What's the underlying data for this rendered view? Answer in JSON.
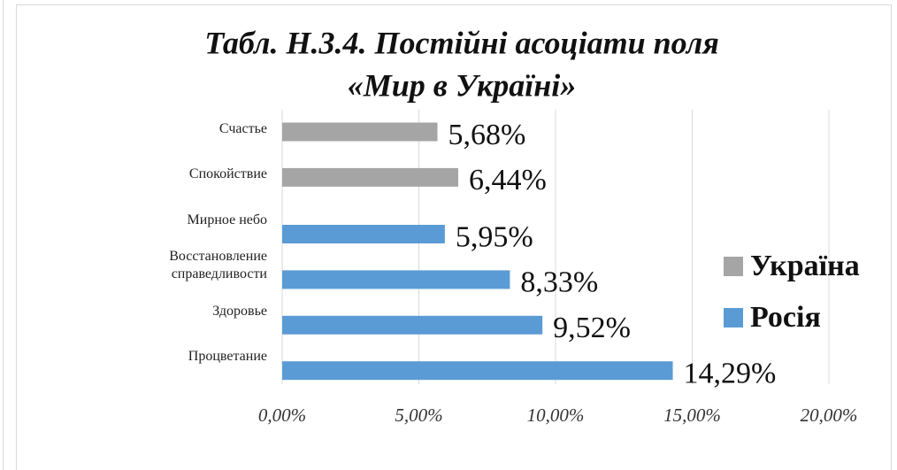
{
  "chart_data": {
    "type": "bar",
    "orientation": "horizontal",
    "title": [
      "Табл. Н.3.4. Постійні асоціати поля",
      "«Мир в Україні»"
    ],
    "categories": [
      "Счастье",
      "Спокойствие",
      "Мирное небо",
      "Восстановление справедливости",
      "Здоровье",
      "Процветание"
    ],
    "series": [
      {
        "name": "Україна",
        "color": "#a5a5a5",
        "values": [
          5.68,
          6.44,
          null,
          null,
          null,
          null
        ],
        "value_labels": [
          "5,68%",
          "6,44%",
          null,
          null,
          null,
          null
        ]
      },
      {
        "name": "Росія",
        "color": "#5b9bd5",
        "values": [
          null,
          null,
          5.95,
          8.33,
          9.52,
          14.29
        ],
        "value_labels": [
          null,
          null,
          "5,95%",
          "8,33%",
          "9,52%",
          "14,29%"
        ]
      }
    ],
    "xlim": [
      0,
      20
    ],
    "xticks": [
      {
        "value": 0,
        "label": "0,00%"
      },
      {
        "value": 5,
        "label": "5,00%"
      },
      {
        "value": 10,
        "label": "10,00%"
      },
      {
        "value": 15,
        "label": "15,00%"
      },
      {
        "value": 20,
        "label": "20,00%"
      }
    ],
    "grid": true,
    "legend": "right"
  }
}
